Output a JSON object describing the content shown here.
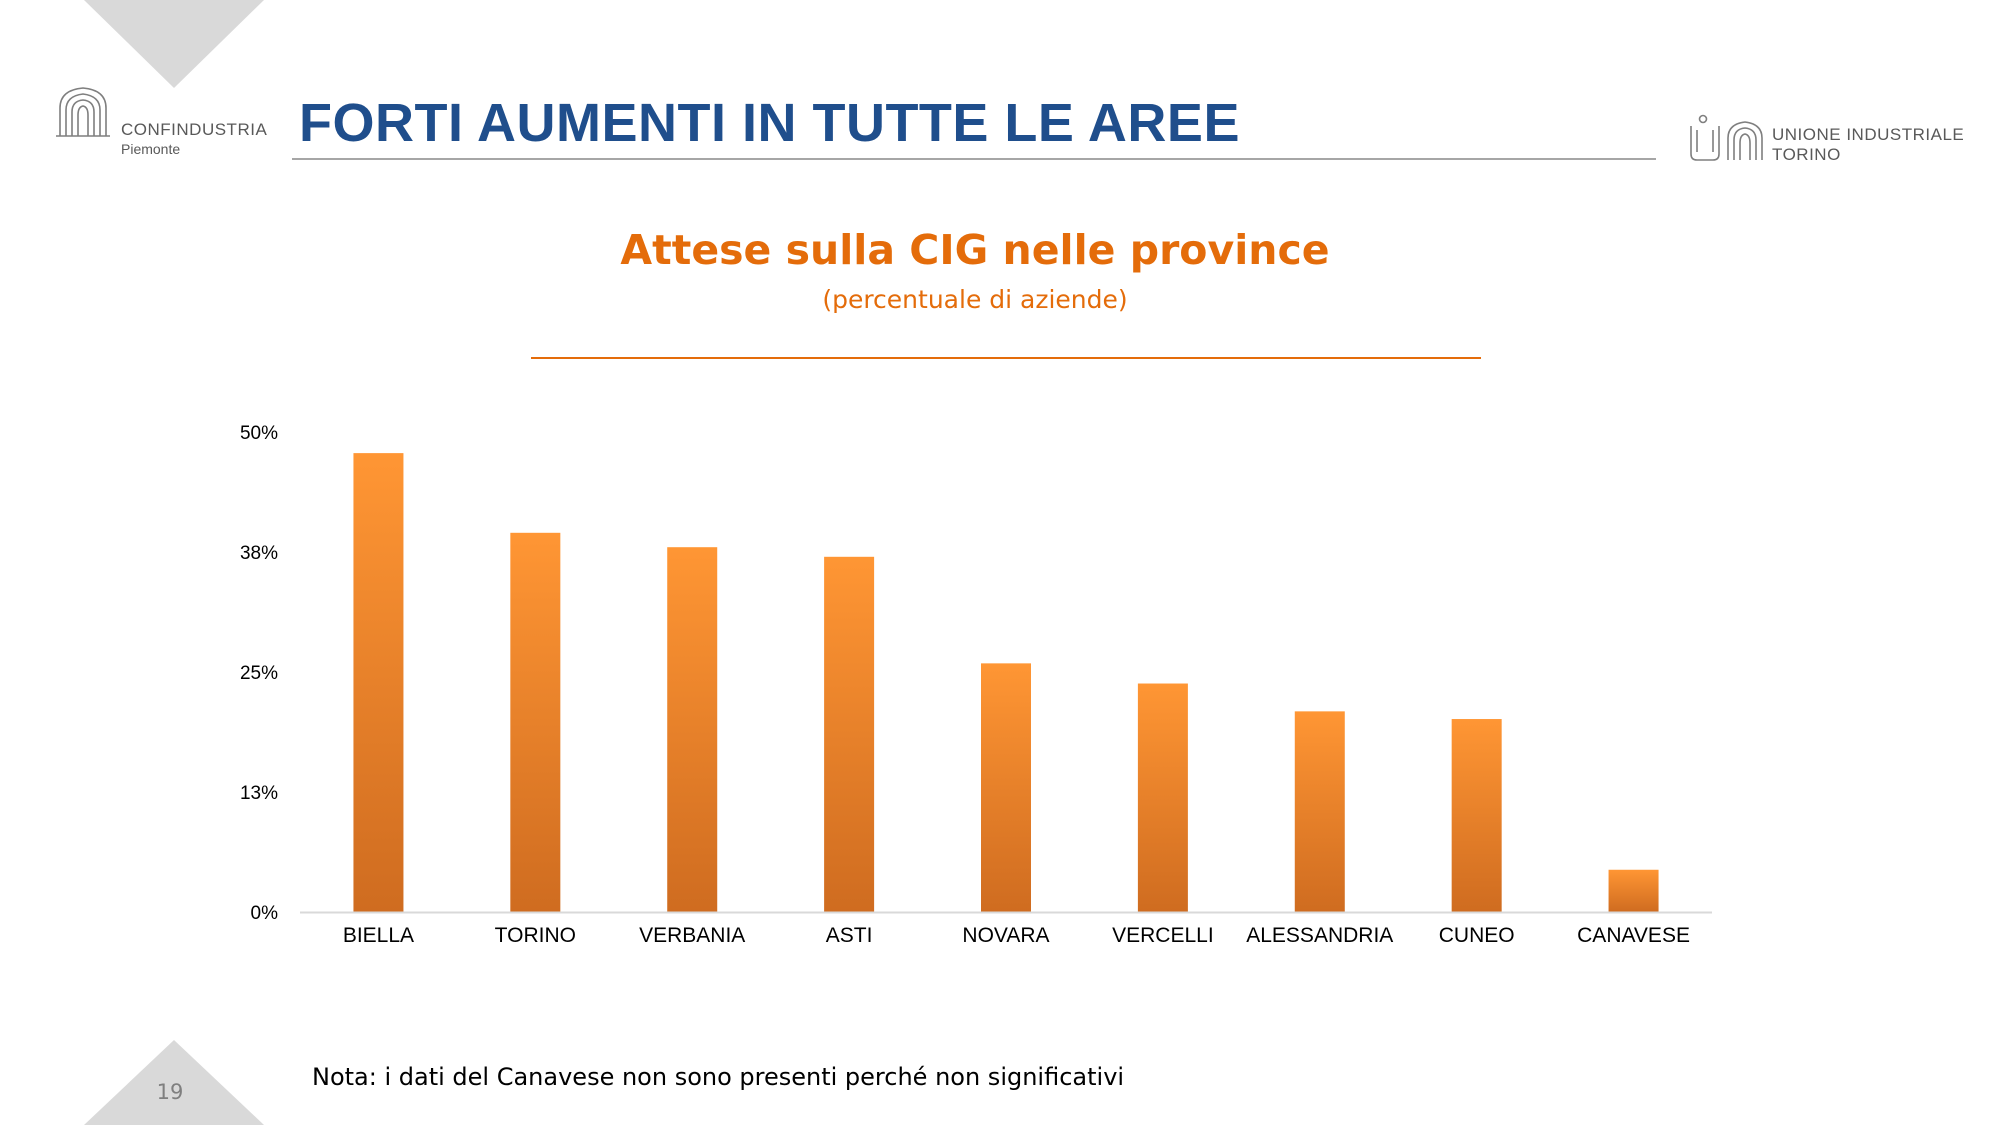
{
  "header": {
    "title": "FORTI AUMENTI IN TUTTE LE AREE",
    "logo_left": {
      "name": "CONFINDUSTRIA",
      "sub": "Piemonte"
    },
    "logo_right": {
      "line1": "UNIONE INDUSTRIALE",
      "line2": "TORINO"
    }
  },
  "chart_data": {
    "type": "bar",
    "title": "Attese sulla CIG nelle province",
    "subtitle": "(percentuale di aziende)",
    "categories": [
      "BIELLA",
      "TORINO",
      "VERBANIA",
      "ASTI",
      "NOVARA",
      "VERCELLI",
      "ALESSANDRIA",
      "CUNEO",
      "CANAVESE"
    ],
    "values": [
      47.8,
      39.5,
      38.0,
      37.0,
      25.9,
      23.8,
      20.9,
      20.1,
      4.4
    ],
    "y_ticks": [
      "0%",
      "13%",
      "25%",
      "38%",
      "50%"
    ],
    "ylim": [
      0,
      50
    ],
    "grid": false,
    "legend": "none",
    "bar_color_top": "#ff9634",
    "bar_color_bottom": "#cf6c20",
    "axis_color": "#d9d9d9"
  },
  "footer": {
    "note": "Nota: i dati del Canavese non sono presenti perché non significativi",
    "page_number": "19"
  },
  "colors": {
    "title_blue": "#1f4e8c",
    "accent_orange": "#e46c0a"
  }
}
